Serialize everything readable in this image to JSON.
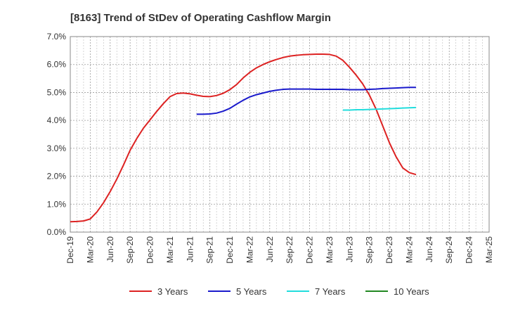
{
  "chart_data": {
    "type": "line",
    "title": "[8163]  Trend of StDev of Operating Cashflow Margin",
    "xlabel": "",
    "ylabel": "",
    "ylim": [
      0,
      7
    ],
    "y_ticks": [
      "0.0%",
      "1.0%",
      "2.0%",
      "3.0%",
      "4.0%",
      "5.0%",
      "6.0%",
      "7.0%"
    ],
    "x_ticks": [
      "Dec-19",
      "Mar-20",
      "Jun-20",
      "Sep-20",
      "Dec-20",
      "Mar-21",
      "Jun-21",
      "Sep-21",
      "Dec-21",
      "Mar-22",
      "Jun-22",
      "Sep-22",
      "Dec-22",
      "Mar-23",
      "Jun-23",
      "Sep-23",
      "Dec-23",
      "Mar-24",
      "Jun-24",
      "Sep-24",
      "Dec-24",
      "Mar-25"
    ],
    "grid": true,
    "legend_position": "bottom",
    "series": [
      {
        "name": "3 Years",
        "color": "#dd2222",
        "values": [
          0.37,
          0.38,
          0.4,
          0.47,
          0.72,
          1.05,
          1.45,
          1.9,
          2.4,
          2.93,
          3.35,
          3.72,
          4.02,
          4.32,
          4.6,
          4.85,
          4.96,
          4.98,
          4.95,
          4.9,
          4.86,
          4.85,
          4.89,
          4.97,
          5.1,
          5.28,
          5.52,
          5.72,
          5.88,
          6.0,
          6.1,
          6.18,
          6.25,
          6.3,
          6.33,
          6.35,
          6.36,
          6.37,
          6.37,
          6.36,
          6.3,
          6.15,
          5.9,
          5.62,
          5.3,
          4.9,
          4.4,
          3.8,
          3.2,
          2.7,
          2.3,
          2.13,
          2.06
        ]
      },
      {
        "name": "5 Years",
        "color": "#1a1acc",
        "values": [
          null,
          null,
          null,
          null,
          null,
          null,
          null,
          null,
          null,
          null,
          null,
          null,
          null,
          null,
          null,
          null,
          null,
          null,
          null,
          4.22,
          4.22,
          4.23,
          4.26,
          4.33,
          4.43,
          4.58,
          4.72,
          4.84,
          4.92,
          4.98,
          5.04,
          5.08,
          5.11,
          5.12,
          5.12,
          5.12,
          5.12,
          5.11,
          5.11,
          5.11,
          5.11,
          5.11,
          5.1,
          5.1,
          5.1,
          5.11,
          5.12,
          5.14,
          5.15,
          5.16,
          5.17,
          5.18,
          5.18
        ]
      },
      {
        "name": "7 Years",
        "color": "#22dddd",
        "values": [
          null,
          null,
          null,
          null,
          null,
          null,
          null,
          null,
          null,
          null,
          null,
          null,
          null,
          null,
          null,
          null,
          null,
          null,
          null,
          null,
          null,
          null,
          null,
          null,
          null,
          null,
          null,
          null,
          null,
          null,
          null,
          null,
          null,
          null,
          null,
          null,
          null,
          null,
          null,
          null,
          null,
          4.37,
          4.37,
          4.38,
          4.38,
          4.39,
          4.4,
          4.41,
          4.42,
          4.43,
          4.44,
          4.45,
          4.46
        ]
      },
      {
        "name": "10 Years",
        "color": "#228822",
        "values": []
      }
    ]
  }
}
